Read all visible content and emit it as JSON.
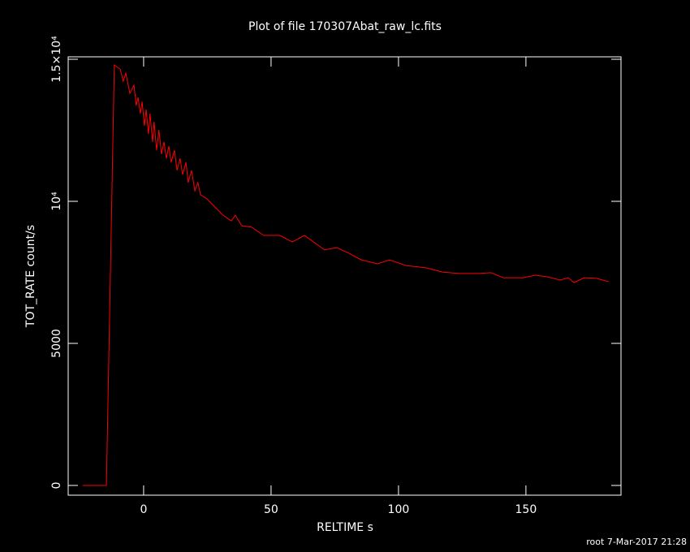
{
  "chart_data": {
    "type": "line",
    "title": "Plot of file 170307Abat_raw_lc.fits",
    "x_label": "RELTIME  s",
    "y_label": "TOT_RATE  count/s",
    "footer": "root  7-Mar-2017 21:28",
    "x": [
      -23.9,
      -14.6,
      -11.5,
      -9.2,
      -8,
      -7,
      -5.4,
      -3.8,
      -2.9,
      -2.2,
      -1.3,
      -0.6,
      0.3,
      1,
      1.9,
      2.5,
      3.5,
      4.1,
      5.1,
      6,
      7,
      8,
      8.9,
      9.9,
      10.8,
      12.1,
      13.1,
      14.3,
      15.3,
      16.6,
      17.5,
      18.8,
      20.1,
      21.3,
      22.3,
      24.8,
      28,
      31.2,
      34.4,
      36,
      38.5,
      42.4,
      47.1,
      53.5,
      58.3,
      63.1,
      71,
      75.8,
      80.6,
      85.4,
      91.7,
      96.5,
      102.9,
      110.8,
      117.2,
      123.6,
      131.5,
      136.3,
      141.1,
      149,
      153.8,
      158.6,
      163.4,
      166.6,
      168.8,
      172.9,
      177.7,
      182.5
    ],
    "series": [
      {
        "name": "TOT_RATE",
        "color": "#ff0000",
        "values": [
          0,
          0,
          14800,
          14650,
          14230,
          14510,
          13800,
          14090,
          13370,
          13660,
          13090,
          13510,
          12660,
          13230,
          12370,
          13090,
          12090,
          12800,
          11800,
          12510,
          11660,
          12090,
          11510,
          11940,
          11370,
          11800,
          11090,
          11510,
          10940,
          11370,
          10660,
          11090,
          10370,
          10660,
          10230,
          10090,
          9800,
          9510,
          9310,
          9510,
          9140,
          9090,
          8800,
          8800,
          8570,
          8800,
          8290,
          8370,
          8170,
          7940,
          7800,
          7940,
          7740,
          7660,
          7510,
          7460,
          7460,
          7490,
          7310,
          7310,
          7400,
          7340,
          7230,
          7310,
          7140,
          7310,
          7290,
          7170
        ]
      }
    ],
    "xlim": [
      -29.6,
      187.3
    ],
    "ylim": [
      -343,
      15086
    ],
    "xticks": [
      0,
      50,
      100,
      150
    ],
    "yticks": [
      0,
      5000,
      {
        "value": 10000,
        "label": "10⁴"
      },
      {
        "value": 15000,
        "label": "1.5×10⁴"
      }
    ]
  }
}
